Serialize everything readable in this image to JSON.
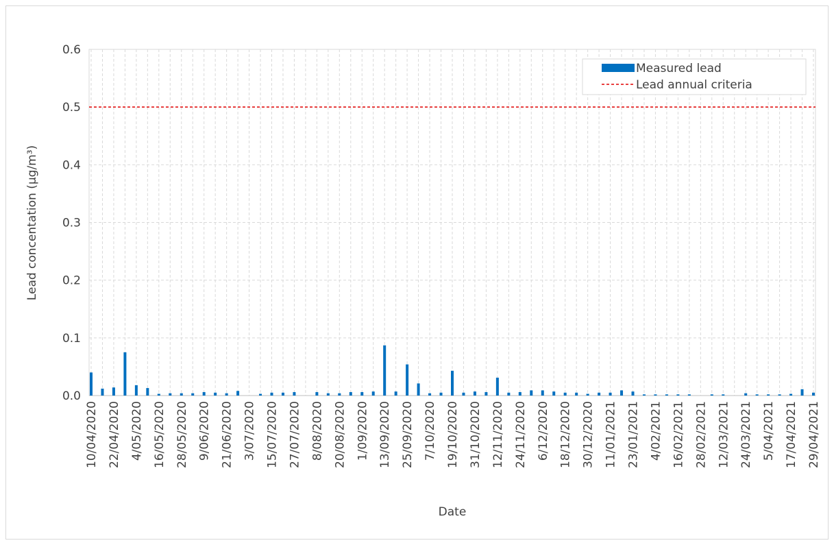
{
  "chart_data": {
    "type": "bar",
    "x_label": "Date",
    "y_label": "Lead concentation (µg/m³)",
    "categories": [
      "10/04/2020",
      null,
      "22/04/2020",
      null,
      "4/05/2020",
      null,
      "16/05/2020",
      null,
      "28/05/2020",
      null,
      "9/06/2020",
      null,
      "21/06/2020",
      null,
      "3/07/2020",
      null,
      "15/07/2020",
      null,
      "27/07/2020",
      null,
      "8/08/2020",
      null,
      "20/08/2020",
      null,
      "1/09/2020",
      null,
      "13/09/2020",
      null,
      "25/09/2020",
      null,
      "7/10/2020",
      null,
      "19/10/2020",
      null,
      "31/10/2020",
      null,
      "12/11/2020",
      null,
      "24/11/2020",
      null,
      "6/12/2020",
      null,
      "18/12/2020",
      null,
      "30/12/2020",
      null,
      "11/01/2021",
      null,
      "23/01/2021",
      null,
      "4/02/2021",
      null,
      "16/02/2021",
      null,
      "28/02/2021",
      null,
      "12/03/2021",
      null,
      "24/03/2021",
      null,
      "5/04/2021",
      null,
      "17/04/2021",
      null,
      "29/04/2021"
    ],
    "series": [
      {
        "name": "Measured lead",
        "color": "#0070c0",
        "values": [
          0.04,
          0.012,
          0.014,
          0.075,
          0.018,
          0.013,
          0.003,
          0.004,
          0.004,
          0.004,
          0.006,
          0.005,
          0.004,
          0.008,
          null,
          0.003,
          0.005,
          0.005,
          0.006,
          null,
          0.006,
          0.004,
          0.004,
          0.006,
          0.006,
          0.007,
          0.087,
          0.007,
          0.054,
          0.021,
          0.004,
          0.005,
          0.043,
          0.005,
          0.007,
          0.006,
          0.031,
          0.005,
          0.006,
          0.009,
          0.009,
          0.007,
          0.005,
          0.005,
          0.003,
          0.005,
          0.005,
          0.009,
          0.007,
          0.002,
          0.002,
          0.002,
          0.002,
          0.002,
          null,
          0.002,
          0.002,
          null,
          0.004,
          0.002,
          0.002,
          0.002,
          0.003,
          0.011,
          0.005
        ]
      }
    ],
    "threshold": {
      "name": "Lead annual criteria",
      "color": "#e00000",
      "value": 0.5
    },
    "ylim": [
      0,
      0.6
    ],
    "yticks": [
      {
        "value": 0,
        "label": "0.0"
      },
      0.1,
      0.2,
      0.3,
      0.4,
      0.5,
      0.6
    ],
    "grid": true,
    "legend": "upper right"
  }
}
